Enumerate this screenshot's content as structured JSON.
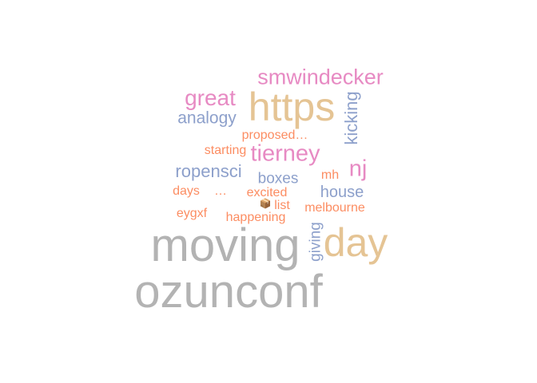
{
  "word_cloud": {
    "colors": {
      "grey": "#b3b3b3",
      "tan": "#e5c494",
      "pink": "#e78ac3",
      "blue": "#8da0cb",
      "orange": "#fc8d62"
    },
    "words": {
      "ozunconf": "ozunconf",
      "moving": "moving",
      "day": "day",
      "https": "https",
      "smwindecker": "smwindecker",
      "great": "great",
      "analogy": "analogy",
      "tierney": "tierney",
      "nj": "nj",
      "ropensci": "ropensci",
      "boxes": "boxes",
      "house": "house",
      "proposed": "proposed…",
      "starting": "starting",
      "mh": "mh",
      "days": "days",
      "ellipsis": "…",
      "excited": "excited",
      "icon": "📦",
      "list": "list",
      "melbourne": "melbourne",
      "eygxf": "eygxf",
      "happening": "happening",
      "kicking": "kicking",
      "giving": "giving"
    }
  }
}
